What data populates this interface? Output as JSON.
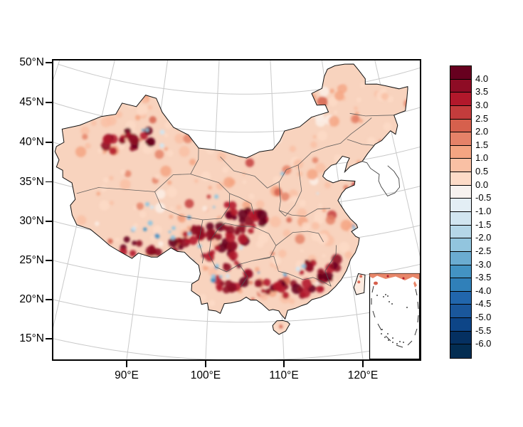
{
  "figure": {
    "background_color": "#ffffff",
    "frame_color": "#000000"
  },
  "map_panel": {
    "graticule_color": "#c9c9c9",
    "land_base_color": "#f8d3be",
    "province_border_color": "#555555",
    "outline_color": "#111111",
    "taiwan_fill": "#fcebe0",
    "y_tick_labels": [
      "50°N",
      "45°N",
      "40°N",
      "35°N",
      "30°N",
      "25°N",
      "20°N",
      "15°N"
    ],
    "x_tick_labels": [
      "90°E",
      "100°E",
      "110°E",
      "120°E"
    ]
  },
  "colorbar": {
    "border_color": "#000000",
    "labels_top_to_bottom": [
      "4.0",
      "3.5",
      "3.0",
      "2.5",
      "2.0",
      "1.5",
      "1.0",
      "0.5",
      "0.0",
      "-0.5",
      "-1.0",
      "-1.5",
      "-2.0",
      "-2.5",
      "-3.0",
      "-3.5",
      "-4.0",
      "-4.5",
      "-5.0",
      "-5.5",
      "-6.0"
    ],
    "segment_colors_top_to_bottom": [
      "#67001f",
      "#8e0c25",
      "#b2182b",
      "#c43c3c",
      "#d6604d",
      "#e58268",
      "#f4a582",
      "#f9c0a4",
      "#fddbc7",
      "#f7f2ef",
      "#e3eef5",
      "#d1e5f0",
      "#b5d7e8",
      "#92c5de",
      "#6bacd1",
      "#4393c3",
      "#3080b9",
      "#2166ac",
      "#1a579b",
      "#0d4587",
      "#053061",
      "#032d52"
    ]
  }
}
